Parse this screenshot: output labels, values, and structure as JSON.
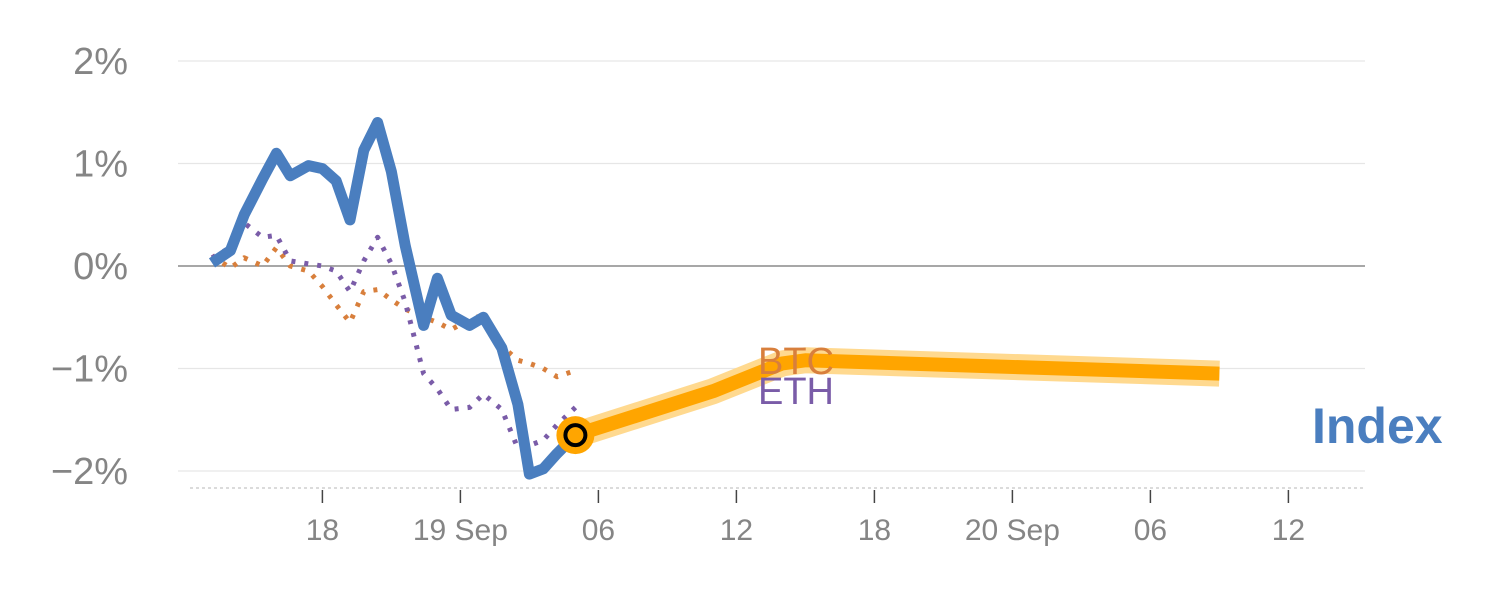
{
  "chart_data": {
    "type": "line",
    "title": "",
    "xlabel": "",
    "ylabel": "",
    "ylim": [
      -2.15,
      2.1
    ],
    "grid": true,
    "y_ticks": [
      {
        "value": 2,
        "label": "2%"
      },
      {
        "value": 1,
        "label": "1%"
      },
      {
        "value": 0,
        "label": "0%"
      },
      {
        "value": -1,
        "label": "−1%"
      },
      {
        "value": -2,
        "label": "−2%"
      }
    ],
    "x_ticks": [
      {
        "hour": 18,
        "label": "18"
      },
      {
        "hour": 24,
        "label": "19 Sep"
      },
      {
        "hour": 30,
        "label": "06"
      },
      {
        "hour": 36,
        "label": "12"
      },
      {
        "hour": 42,
        "label": "18"
      },
      {
        "hour": 48,
        "label": "20 Sep"
      },
      {
        "hour": 54,
        "label": "06"
      },
      {
        "hour": 60,
        "label": "12"
      }
    ],
    "series": [
      {
        "name": "Index",
        "color": "#4a7ebf",
        "style": "solid",
        "points": [
          [
            13.2,
            0.03
          ],
          [
            14.0,
            0.15
          ],
          [
            14.6,
            0.5
          ],
          [
            15.4,
            0.85
          ],
          [
            16.0,
            1.1
          ],
          [
            16.6,
            0.88
          ],
          [
            17.4,
            0.98
          ],
          [
            18.0,
            0.95
          ],
          [
            18.6,
            0.83
          ],
          [
            19.2,
            0.45
          ],
          [
            19.8,
            1.13
          ],
          [
            20.4,
            1.4
          ],
          [
            21.0,
            0.92
          ],
          [
            21.6,
            0.2
          ],
          [
            22.4,
            -0.58
          ],
          [
            23.0,
            -0.12
          ],
          [
            23.6,
            -0.48
          ],
          [
            24.4,
            -0.58
          ],
          [
            25.0,
            -0.5
          ],
          [
            25.8,
            -0.8
          ],
          [
            26.5,
            -1.35
          ],
          [
            27.0,
            -2.03
          ],
          [
            27.6,
            -1.98
          ],
          [
            28.2,
            -1.83
          ],
          [
            29.0,
            -1.65
          ]
        ]
      },
      {
        "name": "BTC",
        "color": "#d87f3c",
        "style": "dotted",
        "points": [
          [
            13.2,
            0.1
          ],
          [
            14.0,
            -0.02
          ],
          [
            14.6,
            0.08
          ],
          [
            15.4,
            0.0
          ],
          [
            16.0,
            0.18
          ],
          [
            16.6,
            0.0
          ],
          [
            17.4,
            -0.05
          ],
          [
            18.0,
            -0.2
          ],
          [
            18.6,
            -0.38
          ],
          [
            19.2,
            -0.55
          ],
          [
            19.8,
            -0.25
          ],
          [
            20.4,
            -0.23
          ],
          [
            21.0,
            -0.33
          ],
          [
            21.6,
            -0.42
          ],
          [
            22.4,
            -0.5
          ],
          [
            23.0,
            -0.55
          ],
          [
            23.6,
            -0.62
          ],
          [
            24.4,
            -0.52
          ],
          [
            25.0,
            -0.48
          ],
          [
            25.8,
            -0.78
          ],
          [
            26.5,
            -0.92
          ],
          [
            27.0,
            -0.95
          ],
          [
            27.6,
            -1.0
          ],
          [
            28.2,
            -1.08
          ],
          [
            29.0,
            -1.02
          ]
        ]
      },
      {
        "name": "ETH",
        "color": "#7a5ca8",
        "style": "dotted",
        "points": [
          [
            13.2,
            0.08
          ],
          [
            14.0,
            0.18
          ],
          [
            14.6,
            0.42
          ],
          [
            15.4,
            0.28
          ],
          [
            16.0,
            0.3
          ],
          [
            16.6,
            0.05
          ],
          [
            17.4,
            0.02
          ],
          [
            18.0,
            0.0
          ],
          [
            18.6,
            -0.05
          ],
          [
            19.2,
            -0.25
          ],
          [
            19.8,
            0.05
          ],
          [
            20.4,
            0.28
          ],
          [
            21.0,
            0.02
          ],
          [
            21.6,
            -0.35
          ],
          [
            22.4,
            -1.05
          ],
          [
            23.0,
            -1.2
          ],
          [
            23.6,
            -1.4
          ],
          [
            24.4,
            -1.38
          ],
          [
            25.0,
            -1.25
          ],
          [
            25.8,
            -1.4
          ],
          [
            26.5,
            -1.78
          ],
          [
            27.0,
            -1.75
          ],
          [
            27.6,
            -1.7
          ],
          [
            28.2,
            -1.55
          ],
          [
            29.0,
            -1.38
          ]
        ]
      },
      {
        "name": "Index forecast",
        "color": "#ffa500",
        "style": "thick-band",
        "points": [
          [
            29.0,
            -1.65
          ],
          [
            35.0,
            -1.22
          ],
          [
            38.0,
            -0.95
          ],
          [
            39.0,
            -0.92
          ],
          [
            57.0,
            -1.05
          ]
        ]
      }
    ],
    "marker": {
      "hour": 29.0,
      "value": -1.65,
      "color": "#ffa500"
    },
    "series_labels": {
      "btc": "BTC",
      "eth": "ETH",
      "index": "Index"
    }
  }
}
